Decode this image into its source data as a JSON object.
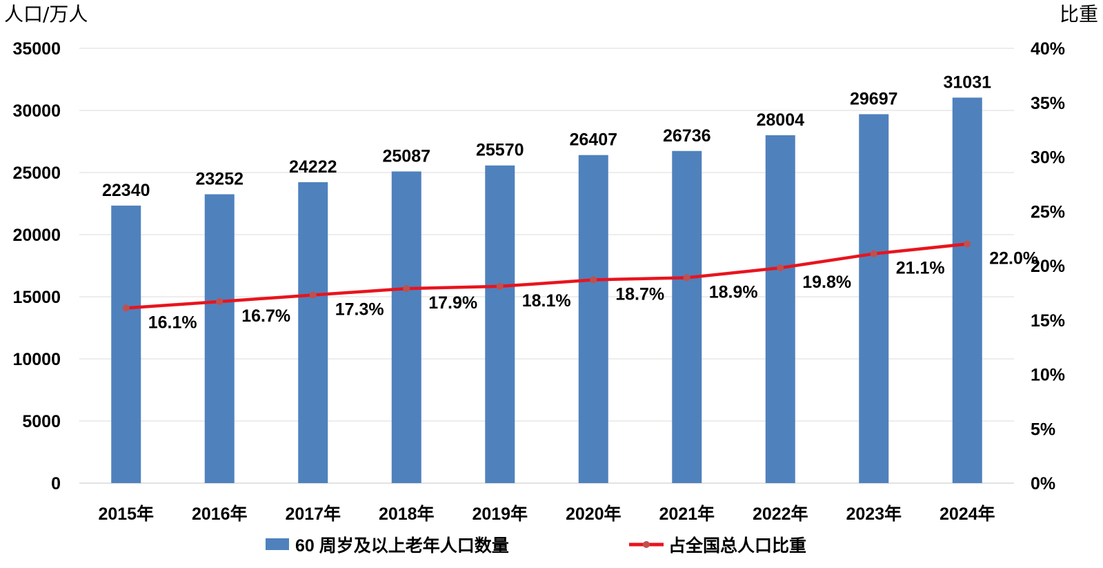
{
  "chart_data": {
    "type": "bar+line",
    "categories": [
      "2015年",
      "2016年",
      "2017年",
      "2018年",
      "2019年",
      "2020年",
      "2021年",
      "2022年",
      "2023年",
      "2024年"
    ],
    "series": [
      {
        "name": "60 周岁及以上老年人口数量",
        "type": "bar",
        "axis": "left",
        "color": "#4f81bd",
        "values": [
          22340,
          23252,
          24222,
          25087,
          25570,
          26407,
          26736,
          28004,
          29697,
          31031
        ],
        "labels": [
          "22340",
          "23252",
          "24222",
          "25087",
          "25570",
          "26407",
          "26736",
          "28004",
          "29697",
          "31031"
        ]
      },
      {
        "name": "占全国总人口比重",
        "type": "line",
        "axis": "right",
        "color": "#e8141d",
        "marker_color": "#c0504d",
        "values": [
          16.1,
          16.7,
          17.3,
          17.9,
          18.1,
          18.7,
          18.9,
          19.8,
          21.1,
          22.0
        ],
        "labels": [
          "16.1%",
          "16.7%",
          "17.3%",
          "17.9%",
          "18.1%",
          "18.7%",
          "18.9%",
          "19.8%",
          "21.1%",
          "22.0%"
        ]
      }
    ],
    "y_left": {
      "label": "人口/万人",
      "ylim": [
        0,
        35000
      ],
      "ticks": [
        "0",
        "5000",
        "10000",
        "15000",
        "20000",
        "25000",
        "30000",
        "35000"
      ]
    },
    "y_right": {
      "label": "比重",
      "ylim": [
        0,
        40
      ],
      "ticks": [
        "0%",
        "5%",
        "10%",
        "15%",
        "20%",
        "25%",
        "30%",
        "35%",
        "40%"
      ]
    },
    "grid": true,
    "legend_position": "bottom-center"
  }
}
